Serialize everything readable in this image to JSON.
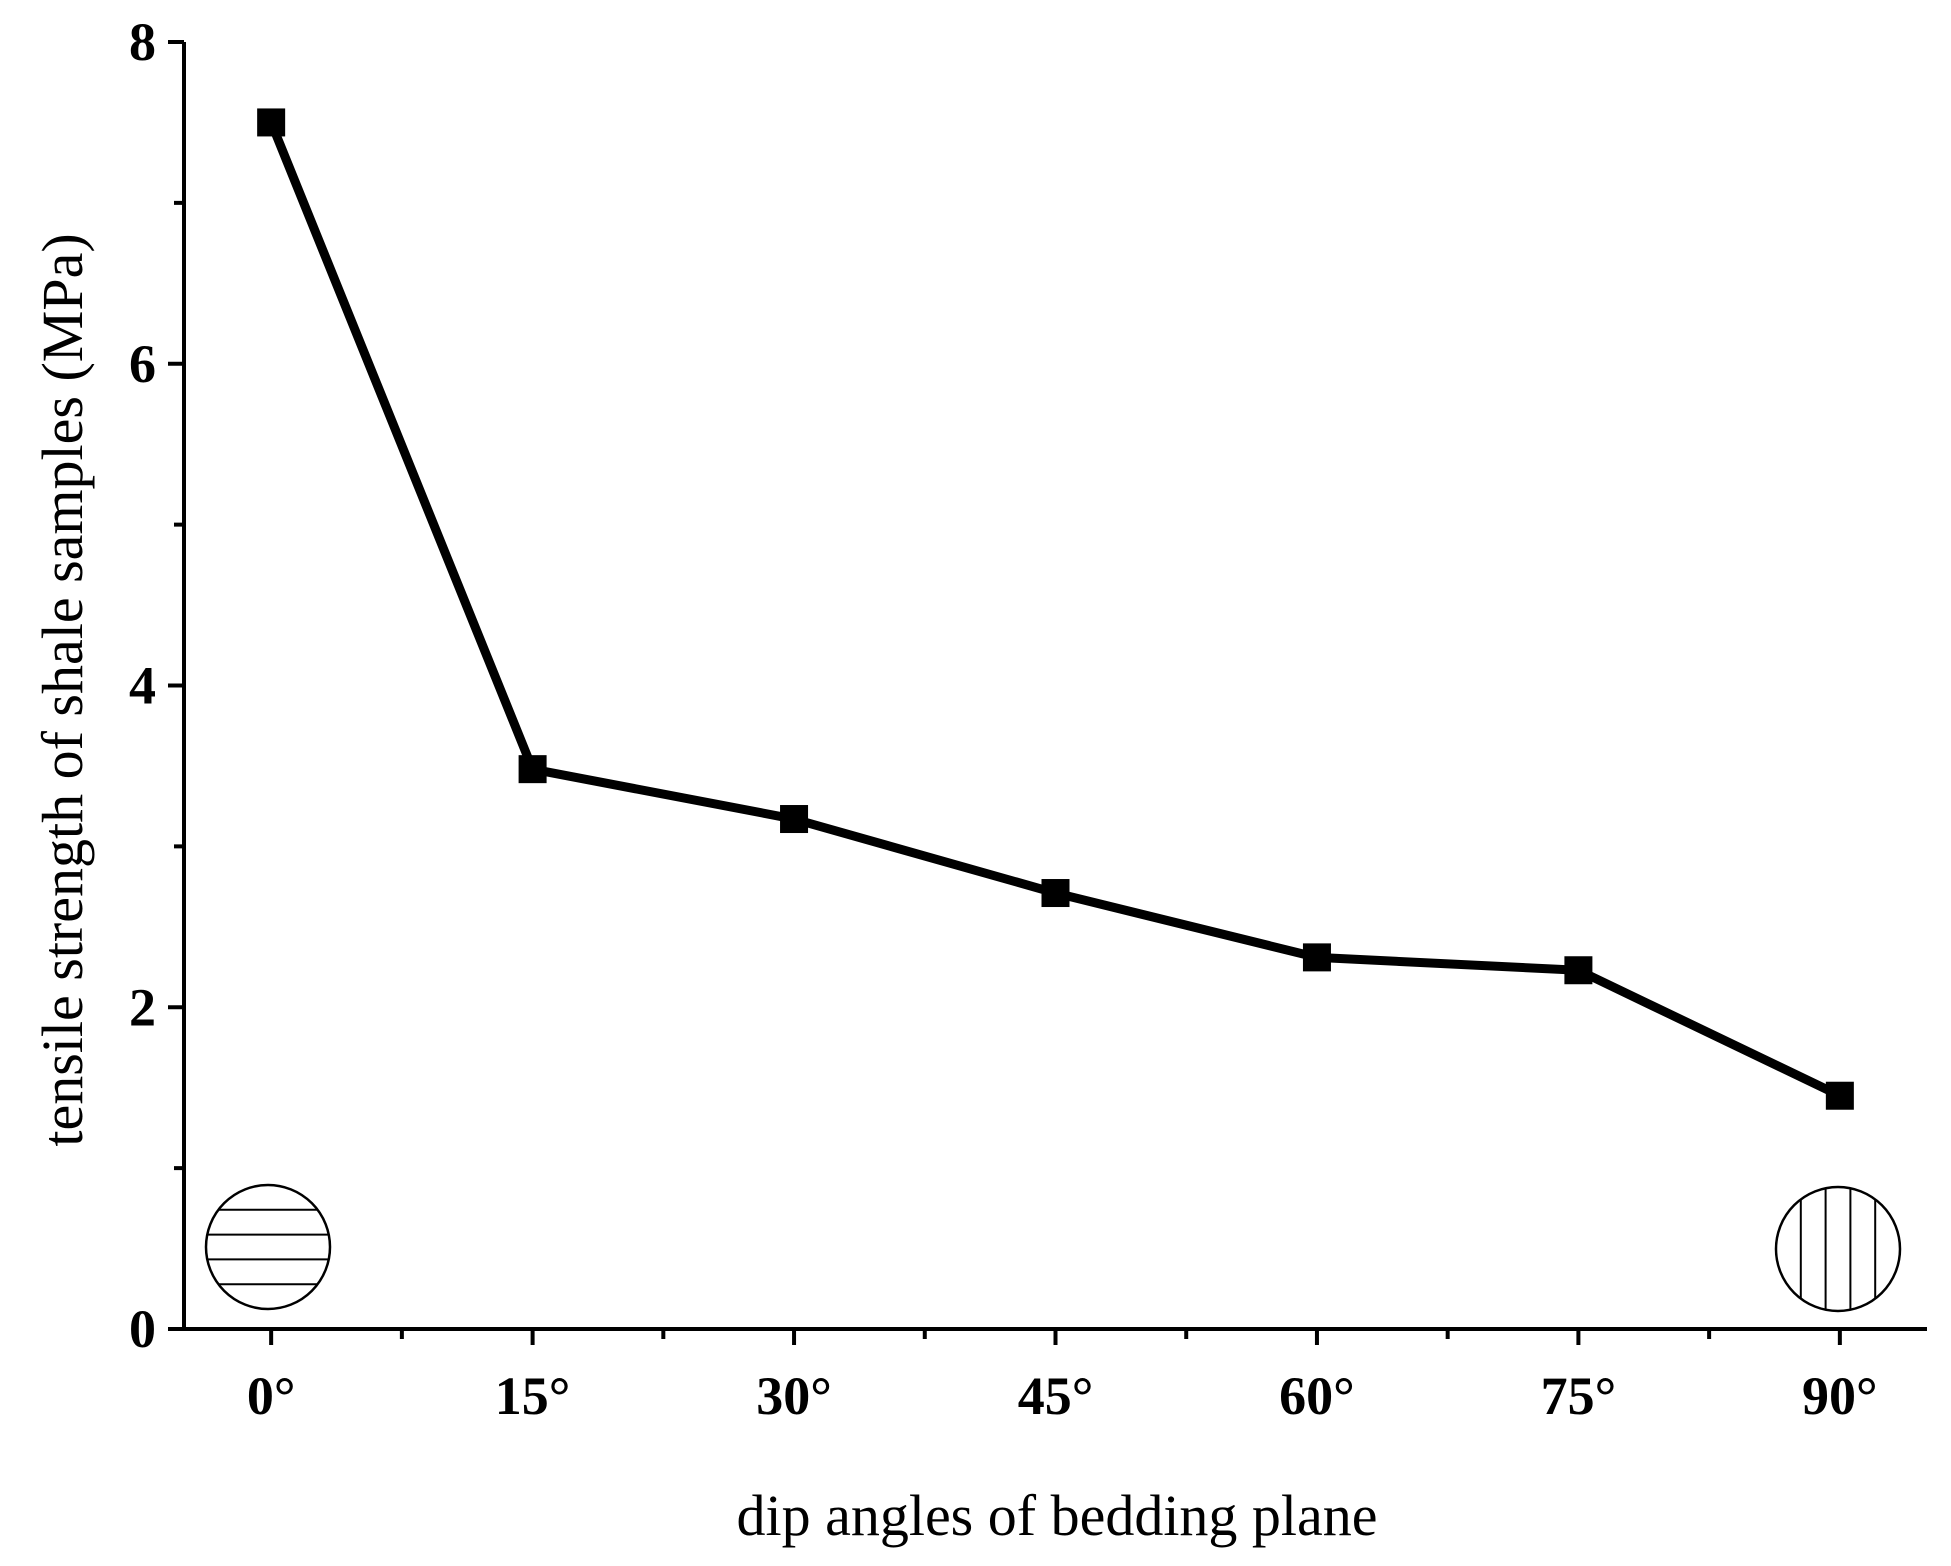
{
  "chart_data": {
    "type": "line",
    "x": [
      0,
      15,
      30,
      45,
      60,
      75,
      90
    ],
    "x_tick_labels": [
      "0°",
      "15°",
      "30°",
      "45°",
      "60°",
      "75°",
      "90°"
    ],
    "y_tick_labels": [
      "0",
      "2",
      "4",
      "6",
      "8"
    ],
    "series": [
      {
        "values": [
          7.5,
          3.48,
          3.17,
          2.71,
          2.31,
          2.23,
          1.45
        ],
        "marker": "square",
        "color": "#000000"
      }
    ],
    "xlabel": "dip angles of bedding plane",
    "ylabel": "tensile strength of shale samples (MPa)",
    "xlim": [
      -5,
      95
    ],
    "ylim": [
      0,
      8
    ],
    "grid": false,
    "insets": [
      {
        "name": "horizontal-bedding-icon",
        "orientation": "horizontal",
        "position": "bottom-left"
      },
      {
        "name": "vertical-bedding-icon",
        "orientation": "vertical",
        "position": "bottom-right"
      }
    ]
  }
}
